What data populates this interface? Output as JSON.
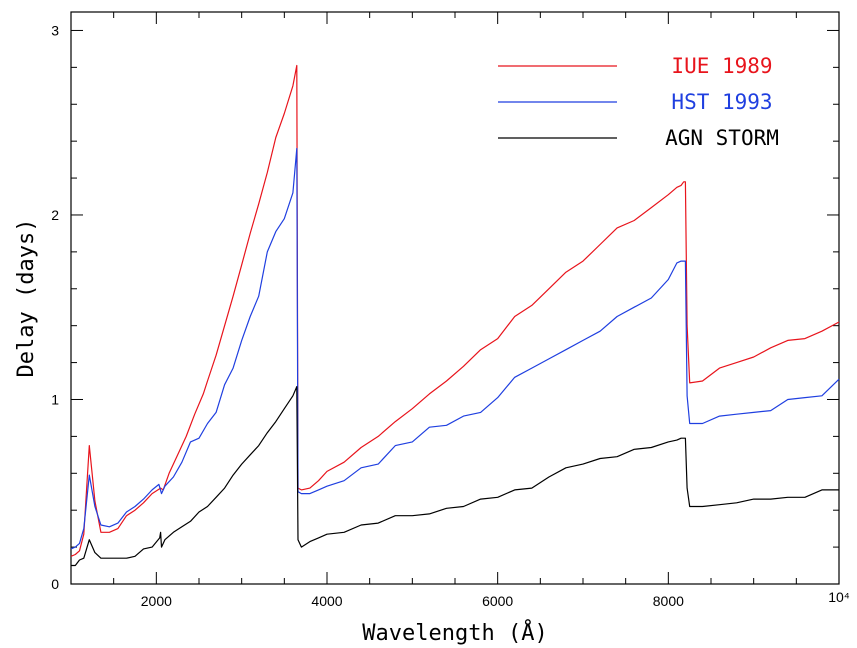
{
  "chart_data": {
    "type": "line",
    "title": "",
    "xlabel": "Wavelength (Å)",
    "ylabel": "Delay (days)",
    "xlim": [
      1000,
      10000
    ],
    "ylim": [
      0,
      3.1
    ],
    "grid": false,
    "legend_position": "top-right",
    "x_ticks": [
      {
        "value": 2000,
        "label": "2000"
      },
      {
        "value": 4000,
        "label": "4000"
      },
      {
        "value": 6000,
        "label": "6000"
      },
      {
        "value": 8000,
        "label": "8000"
      },
      {
        "value": 10000,
        "label": "10⁴"
      }
    ],
    "y_ticks": [
      {
        "value": 0,
        "label": "0"
      },
      {
        "value": 1,
        "label": "1"
      },
      {
        "value": 2,
        "label": "2"
      },
      {
        "value": 3,
        "label": "3"
      }
    ],
    "series": [
      {
        "name": "IUE 1989",
        "color": "#e8141c",
        "x": [
          1000,
          1050,
          1100,
          1150,
          1215,
          1280,
          1350,
          1450,
          1550,
          1650,
          1750,
          1850,
          1950,
          2050,
          2080,
          2150,
          2250,
          2350,
          2450,
          2550,
          2600,
          2700,
          2800,
          2900,
          3000,
          3100,
          3200,
          3300,
          3400,
          3500,
          3600,
          3646,
          3660,
          3700,
          3800,
          3900,
          4000,
          4200,
          4400,
          4600,
          4800,
          5000,
          5200,
          5400,
          5600,
          5800,
          6000,
          6200,
          6400,
          6600,
          6800,
          7000,
          7200,
          7400,
          7600,
          7800,
          8000,
          8100,
          8150,
          8180,
          8200,
          8220,
          8250,
          8400,
          8600,
          8800,
          9000,
          9200,
          9400,
          9600,
          9800,
          10000
        ],
        "values": [
          0.15,
          0.16,
          0.18,
          0.27,
          0.75,
          0.45,
          0.28,
          0.28,
          0.3,
          0.37,
          0.4,
          0.44,
          0.49,
          0.52,
          0.51,
          0.6,
          0.7,
          0.8,
          0.92,
          1.03,
          1.1,
          1.24,
          1.4,
          1.56,
          1.73,
          1.9,
          2.06,
          2.23,
          2.42,
          2.55,
          2.7,
          2.81,
          0.52,
          0.51,
          0.52,
          0.56,
          0.61,
          0.66,
          0.74,
          0.8,
          0.88,
          0.95,
          1.03,
          1.1,
          1.18,
          1.27,
          1.33,
          1.45,
          1.51,
          1.6,
          1.69,
          1.75,
          1.84,
          1.93,
          1.97,
          2.04,
          2.11,
          2.15,
          2.16,
          2.18,
          2.18,
          1.4,
          1.09,
          1.1,
          1.17,
          1.2,
          1.23,
          1.28,
          1.32,
          1.33,
          1.37,
          1.42
        ]
      },
      {
        "name": "HST 1993",
        "color": "#1f3fe0",
        "x": [
          1000,
          1050,
          1100,
          1150,
          1215,
          1280,
          1350,
          1450,
          1550,
          1650,
          1750,
          1850,
          1950,
          2030,
          2060,
          2100,
          2200,
          2300,
          2400,
          2500,
          2600,
          2700,
          2800,
          2900,
          3000,
          3100,
          3200,
          3300,
          3400,
          3500,
          3600,
          3646,
          3660,
          3700,
          3800,
          3900,
          4000,
          4200,
          4400,
          4600,
          4800,
          5000,
          5200,
          5400,
          5600,
          5800,
          6000,
          6200,
          6400,
          6600,
          6800,
          7000,
          7200,
          7400,
          7600,
          7800,
          8000,
          8100,
          8150,
          8180,
          8200,
          8220,
          8250,
          8400,
          8600,
          8800,
          9000,
          9200,
          9400,
          9600,
          9800,
          10000
        ],
        "values": [
          0.19,
          0.2,
          0.22,
          0.3,
          0.59,
          0.42,
          0.32,
          0.31,
          0.33,
          0.39,
          0.42,
          0.46,
          0.51,
          0.54,
          0.49,
          0.53,
          0.58,
          0.66,
          0.77,
          0.79,
          0.87,
          0.93,
          1.08,
          1.17,
          1.32,
          1.45,
          1.56,
          1.8,
          1.91,
          1.98,
          2.12,
          2.36,
          0.5,
          0.49,
          0.49,
          0.51,
          0.53,
          0.56,
          0.63,
          0.65,
          0.75,
          0.77,
          0.85,
          0.86,
          0.91,
          0.93,
          1.01,
          1.12,
          1.17,
          1.22,
          1.27,
          1.32,
          1.37,
          1.45,
          1.5,
          1.55,
          1.65,
          1.74,
          1.75,
          1.75,
          1.75,
          1.02,
          0.87,
          0.87,
          0.91,
          0.92,
          0.93,
          0.94,
          1.0,
          1.01,
          1.02,
          1.11
        ]
      },
      {
        "name": "AGN STORM",
        "color": "#000000",
        "x": [
          1000,
          1050,
          1100,
          1150,
          1215,
          1280,
          1350,
          1450,
          1550,
          1650,
          1750,
          1850,
          1950,
          2040,
          2050,
          2060,
          2100,
          2200,
          2300,
          2400,
          2500,
          2600,
          2700,
          2800,
          2900,
          3000,
          3100,
          3200,
          3300,
          3400,
          3500,
          3600,
          3646,
          3660,
          3700,
          3800,
          3900,
          4000,
          4200,
          4400,
          4600,
          4800,
          5000,
          5200,
          5400,
          5600,
          5800,
          6000,
          6200,
          6400,
          6600,
          6800,
          7000,
          7200,
          7400,
          7600,
          7800,
          8000,
          8100,
          8150,
          8180,
          8200,
          8220,
          8250,
          8400,
          8600,
          8800,
          9000,
          9200,
          9400,
          9600,
          9800,
          10000
        ],
        "values": [
          0.1,
          0.1,
          0.13,
          0.14,
          0.24,
          0.17,
          0.14,
          0.14,
          0.14,
          0.14,
          0.15,
          0.19,
          0.2,
          0.25,
          0.28,
          0.2,
          0.24,
          0.28,
          0.31,
          0.34,
          0.39,
          0.42,
          0.47,
          0.52,
          0.59,
          0.65,
          0.7,
          0.75,
          0.82,
          0.88,
          0.95,
          1.02,
          1.07,
          0.24,
          0.2,
          0.23,
          0.25,
          0.27,
          0.28,
          0.32,
          0.33,
          0.37,
          0.37,
          0.38,
          0.41,
          0.42,
          0.46,
          0.47,
          0.51,
          0.52,
          0.58,
          0.63,
          0.65,
          0.68,
          0.69,
          0.73,
          0.74,
          0.77,
          0.78,
          0.79,
          0.79,
          0.79,
          0.52,
          0.42,
          0.42,
          0.43,
          0.44,
          0.46,
          0.46,
          0.47,
          0.47,
          0.51,
          0.51
        ]
      }
    ]
  }
}
